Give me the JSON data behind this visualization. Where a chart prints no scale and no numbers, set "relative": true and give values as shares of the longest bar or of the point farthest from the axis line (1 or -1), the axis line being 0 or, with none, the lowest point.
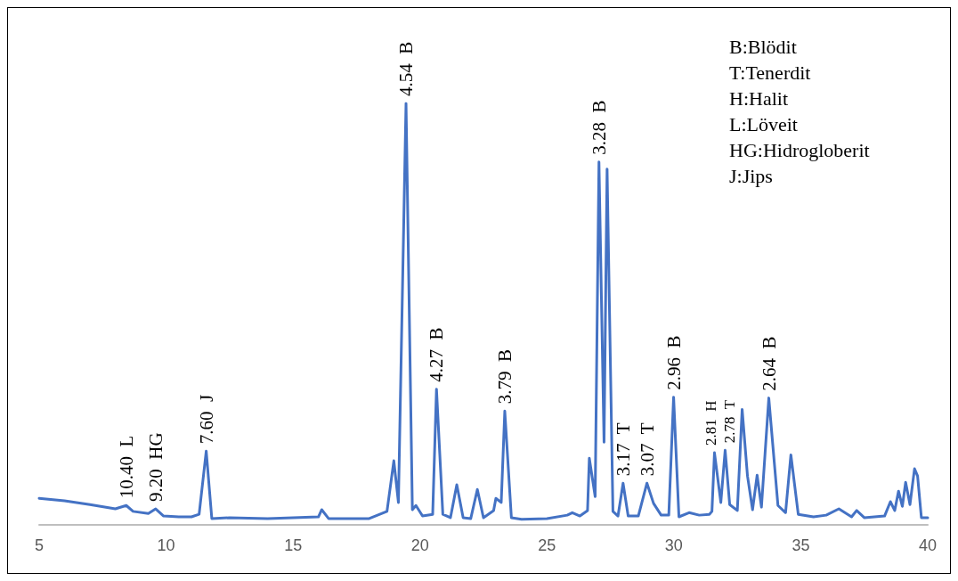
{
  "chart_data": {
    "type": "line",
    "relative": true,
    "xlim": [
      5,
      40
    ],
    "xticks": [
      5,
      10,
      15,
      20,
      25,
      30,
      35,
      40
    ],
    "marker": "none",
    "line_style": "solid",
    "series": [
      {
        "color": "#4472c4",
        "x": [
          5,
          6,
          7,
          8,
          8.43,
          8.7,
          9.3,
          9.59,
          9.9,
          10.5,
          11,
          11.3,
          11.58,
          11.8,
          12.5,
          14,
          16,
          16.13,
          16.4,
          18,
          18.7,
          18.97,
          19.15,
          19.45,
          19.7,
          19.84,
          20.1,
          20.5,
          20.65,
          20.9,
          21.2,
          21.45,
          21.7,
          22,
          22.26,
          22.5,
          22.9,
          22.99,
          23.2,
          23.34,
          23.6,
          24,
          25,
          25.8,
          26,
          26.3,
          26.6,
          26.67,
          26.9,
          27.05,
          27.25,
          27.37,
          27.6,
          27.8,
          28,
          28.2,
          28.6,
          28.94,
          29.2,
          29.5,
          29.8,
          29.99,
          30.2,
          30.6,
          31,
          31.4,
          31.5,
          31.6,
          31.85,
          32.02,
          32.2,
          32.5,
          32.69,
          32.9,
          33.1,
          33.28,
          33.45,
          33.74,
          34.1,
          34.4,
          34.61,
          34.9,
          35.5,
          36,
          36.5,
          37,
          37.2,
          37.5,
          38.3,
          38.53,
          38.7,
          38.85,
          39,
          39.13,
          39.3,
          39.48,
          39.6,
          39.75,
          40
        ],
        "values": [
          0.063,
          0.057,
          0.048,
          0.038,
          0.046,
          0.032,
          0.027,
          0.038,
          0.021,
          0.019,
          0.019,
          0.025,
          0.175,
          0.015,
          0.017,
          0.015,
          0.019,
          0.036,
          0.015,
          0.015,
          0.032,
          0.152,
          0.053,
          1,
          0.036,
          0.046,
          0.021,
          0.025,
          0.322,
          0.025,
          0.017,
          0.095,
          0.017,
          0.015,
          0.084,
          0.017,
          0.034,
          0.063,
          0.053,
          0.27,
          0.017,
          0.013,
          0.015,
          0.023,
          0.029,
          0.021,
          0.034,
          0.158,
          0.067,
          0.861,
          0.196,
          0.844,
          0.032,
          0.021,
          0.099,
          0.021,
          0.021,
          0.099,
          0.051,
          0.023,
          0.023,
          0.303,
          0.019,
          0.029,
          0.023,
          0.025,
          0.032,
          0.171,
          0.053,
          0.177,
          0.048,
          0.034,
          0.274,
          0.116,
          0.036,
          0.118,
          0.042,
          0.301,
          0.046,
          0.029,
          0.166,
          0.025,
          0.019,
          0.023,
          0.038,
          0.019,
          0.034,
          0.017,
          0.021,
          0.055,
          0.034,
          0.08,
          0.044,
          0.101,
          0.048,
          0.133,
          0.116,
          0.017,
          0.017
        ]
      }
    ],
    "annotations": [
      {
        "text": "10.40  L",
        "x": 8.43,
        "y": 0.046
      },
      {
        "text": "9.20  HG",
        "x": 9.59,
        "y": 0.038
      },
      {
        "text": "7.60  J",
        "x": 11.58,
        "y": 0.175
      },
      {
        "text": "4.54  B",
        "x": 19.45,
        "y": 1
      },
      {
        "text": "4.27  B",
        "x": 20.65,
        "y": 0.322
      },
      {
        "text": "3.79  B",
        "x": 23.34,
        "y": 0.27
      },
      {
        "text": "3.28  B",
        "x": 27.05,
        "y": 0.861
      },
      {
        "text": "3.17  T",
        "x": 28,
        "y": 0.099
      },
      {
        "text": "3.07  T",
        "x": 28.94,
        "y": 0.099
      },
      {
        "text": "2.96  B",
        "x": 29.99,
        "y": 0.303
      },
      {
        "text": "2.81  H",
        "x": 31.6,
        "y": 0.171
      },
      {
        "text": "2.78  T",
        "x": 32.02,
        "y": 0.177
      },
      {
        "text": "2.64  B",
        "x": 33.74,
        "y": 0.301
      },
      "B:Blödit",
      "T:Tenerdit",
      "H:Halit",
      "L:Löveit",
      "HG:Hidrogloberit",
      "J:Jips"
    ]
  }
}
